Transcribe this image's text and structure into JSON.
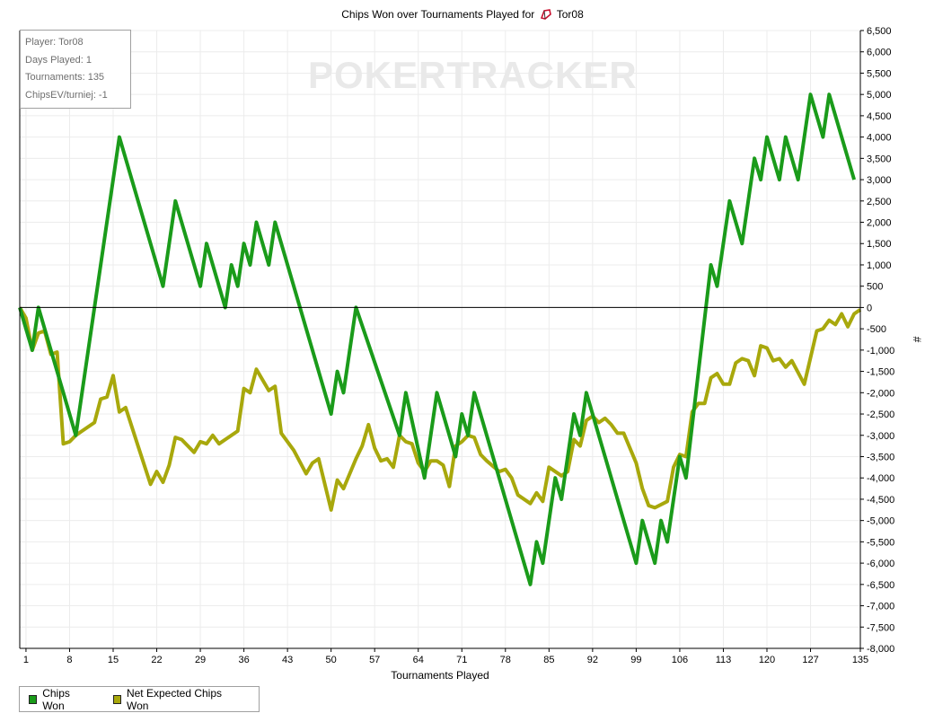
{
  "title": "Chips Won over Tournaments Played for",
  "player_name": "Tor08",
  "info": {
    "player": "Player: Tor08",
    "days": "Days Played: 1",
    "tournaments": "Tournaments: 135",
    "chipsev": "ChipsEV/turniej: -1"
  },
  "watermark": "POKERTRACKER",
  "legend": {
    "chips_won": "Chips Won",
    "net_expected": "Net Expected Chips Won"
  },
  "colors": {
    "chips_won": "#1a9b1a",
    "net_expected": "#a8a80c",
    "zero_line": "#000000",
    "grid": "#ececec"
  },
  "chart_data": {
    "type": "line",
    "xlabel": "Tournaments Played",
    "ylabel": "#",
    "xlim": [
      0,
      135
    ],
    "ylim": [
      -8000,
      6500
    ],
    "x_ticks": [
      1,
      8,
      15,
      22,
      29,
      36,
      43,
      50,
      57,
      64,
      71,
      78,
      85,
      92,
      99,
      106,
      113,
      120,
      127,
      135
    ],
    "y_ticks": [
      "6,500",
      "6,000",
      "5,500",
      "5,000",
      "4,500",
      "4,000",
      "3,500",
      "3,000",
      "2,500",
      "2,000",
      "1,500",
      "1,000",
      "500",
      "0",
      "-500",
      "-1,000",
      "-1,500",
      "-2,000",
      "-2,500",
      "-3,000",
      "-3,500",
      "-4,000",
      "-4,500",
      "-5,000",
      "-5,500",
      "-6,000",
      "-6,500",
      "-7,000",
      "-7,500",
      "-8,000"
    ],
    "y_tick_values": [
      6500,
      6000,
      5500,
      5000,
      4500,
      4000,
      3500,
      3000,
      2500,
      2000,
      1500,
      1000,
      500,
      0,
      -500,
      -1000,
      -1500,
      -2000,
      -2500,
      -3000,
      -3500,
      -4000,
      -4500,
      -5000,
      -5500,
      -6000,
      -6500,
      -7000,
      -7500,
      -8000
    ],
    "legend_position": "bottom-left",
    "grid": true,
    "series": [
      {
        "name": "Chips Won",
        "points": [
          [
            0,
            0
          ],
          [
            2,
            -1000
          ],
          [
            3,
            0
          ],
          [
            9,
            -3000
          ],
          [
            16,
            4000
          ],
          [
            23,
            500
          ],
          [
            25,
            2500
          ],
          [
            29,
            500
          ],
          [
            30,
            1500
          ],
          [
            33,
            0
          ],
          [
            34,
            1000
          ],
          [
            35,
            500
          ],
          [
            36,
            1500
          ],
          [
            37,
            1000
          ],
          [
            38,
            2000
          ],
          [
            40,
            1000
          ],
          [
            41,
            2000
          ],
          [
            50,
            -2500
          ],
          [
            51,
            -1500
          ],
          [
            52,
            -2000
          ],
          [
            54,
            0
          ],
          [
            61,
            -3000
          ],
          [
            62,
            -2000
          ],
          [
            65,
            -4000
          ],
          [
            67,
            -2000
          ],
          [
            70,
            -3500
          ],
          [
            71,
            -2500
          ],
          [
            72,
            -3000
          ],
          [
            73,
            -2000
          ],
          [
            82,
            -6500
          ],
          [
            83,
            -5500
          ],
          [
            84,
            -6000
          ],
          [
            86,
            -4000
          ],
          [
            87,
            -4500
          ],
          [
            89,
            -2500
          ],
          [
            90,
            -3000
          ],
          [
            91,
            -2000
          ],
          [
            99,
            -6000
          ],
          [
            100,
            -5000
          ],
          [
            102,
            -6000
          ],
          [
            103,
            -5000
          ],
          [
            104,
            -5500
          ],
          [
            106,
            -3500
          ],
          [
            107,
            -4000
          ],
          [
            111,
            1000
          ],
          [
            112,
            500
          ],
          [
            114,
            2500
          ],
          [
            116,
            1500
          ],
          [
            118,
            3500
          ],
          [
            119,
            3000
          ],
          [
            120,
            4000
          ],
          [
            122,
            3000
          ],
          [
            123,
            4000
          ],
          [
            125,
            3000
          ],
          [
            127,
            5000
          ],
          [
            129,
            4000
          ],
          [
            130,
            5000
          ],
          [
            134,
            3000
          ]
        ]
      },
      {
        "name": "Net Expected Chips Won",
        "points": [
          [
            0,
            0
          ],
          [
            1,
            -250
          ],
          [
            2,
            -1000
          ],
          [
            3,
            -600
          ],
          [
            4,
            -550
          ],
          [
            5,
            -1100
          ],
          [
            6,
            -1050
          ],
          [
            7,
            -3200
          ],
          [
            8,
            -3150
          ],
          [
            9,
            -3000
          ],
          [
            10,
            -2900
          ],
          [
            12,
            -2700
          ],
          [
            13,
            -2150
          ],
          [
            14,
            -2100
          ],
          [
            15,
            -1600
          ],
          [
            16,
            -2450
          ],
          [
            17,
            -2350
          ],
          [
            18,
            -2800
          ],
          [
            19,
            -3250
          ],
          [
            21,
            -4150
          ],
          [
            22,
            -3850
          ],
          [
            23,
            -4100
          ],
          [
            24,
            -3700
          ],
          [
            25,
            -3050
          ],
          [
            26,
            -3100
          ],
          [
            28,
            -3400
          ],
          [
            29,
            -3150
          ],
          [
            30,
            -3200
          ],
          [
            31,
            -3000
          ],
          [
            32,
            -3200
          ],
          [
            35,
            -2900
          ],
          [
            36,
            -1900
          ],
          [
            37,
            -2000
          ],
          [
            38,
            -1450
          ],
          [
            40,
            -1950
          ],
          [
            41,
            -1850
          ],
          [
            42,
            -2950
          ],
          [
            44,
            -3350
          ],
          [
            46,
            -3900
          ],
          [
            47,
            -3650
          ],
          [
            48,
            -3550
          ],
          [
            50,
            -4750
          ],
          [
            51,
            -4050
          ],
          [
            52,
            -4250
          ],
          [
            54,
            -3550
          ],
          [
            55,
            -3250
          ],
          [
            56,
            -2750
          ],
          [
            57,
            -3300
          ],
          [
            58,
            -3600
          ],
          [
            59,
            -3550
          ],
          [
            60,
            -3750
          ],
          [
            61,
            -3000
          ],
          [
            62,
            -3150
          ],
          [
            63,
            -3200
          ],
          [
            64,
            -3650
          ],
          [
            65,
            -3850
          ],
          [
            66,
            -3600
          ],
          [
            67,
            -3600
          ],
          [
            68,
            -3700
          ],
          [
            69,
            -4200
          ],
          [
            70,
            -3250
          ],
          [
            71,
            -3150
          ],
          [
            72,
            -3000
          ],
          [
            73,
            -3050
          ],
          [
            74,
            -3450
          ],
          [
            75,
            -3600
          ],
          [
            77,
            -3850
          ],
          [
            78,
            -3800
          ],
          [
            79,
            -4000
          ],
          [
            80,
            -4400
          ],
          [
            82,
            -4600
          ],
          [
            83,
            -4350
          ],
          [
            84,
            -4550
          ],
          [
            85,
            -3750
          ],
          [
            87,
            -3950
          ],
          [
            88,
            -3850
          ],
          [
            89,
            -3100
          ],
          [
            90,
            -3250
          ],
          [
            91,
            -2650
          ],
          [
            92,
            -2550
          ],
          [
            93,
            -2700
          ],
          [
            94,
            -2600
          ],
          [
            95,
            -2750
          ],
          [
            96,
            -2950
          ],
          [
            97,
            -2950
          ],
          [
            99,
            -3650
          ],
          [
            100,
            -4250
          ],
          [
            101,
            -4650
          ],
          [
            102,
            -4700
          ],
          [
            104,
            -4550
          ],
          [
            105,
            -3750
          ],
          [
            106,
            -3450
          ],
          [
            107,
            -3500
          ],
          [
            108,
            -2450
          ],
          [
            109,
            -2250
          ],
          [
            110,
            -2250
          ],
          [
            111,
            -1650
          ],
          [
            112,
            -1550
          ],
          [
            113,
            -1800
          ],
          [
            114,
            -1800
          ],
          [
            115,
            -1300
          ],
          [
            116,
            -1200
          ],
          [
            117,
            -1250
          ],
          [
            118,
            -1600
          ],
          [
            119,
            -900
          ],
          [
            120,
            -950
          ],
          [
            121,
            -1250
          ],
          [
            122,
            -1200
          ],
          [
            123,
            -1400
          ],
          [
            124,
            -1250
          ],
          [
            126,
            -1800
          ],
          [
            128,
            -550
          ],
          [
            129,
            -500
          ],
          [
            130,
            -300
          ],
          [
            131,
            -400
          ],
          [
            132,
            -150
          ],
          [
            133,
            -450
          ],
          [
            134,
            -150
          ],
          [
            135,
            -50
          ]
        ]
      }
    ]
  }
}
